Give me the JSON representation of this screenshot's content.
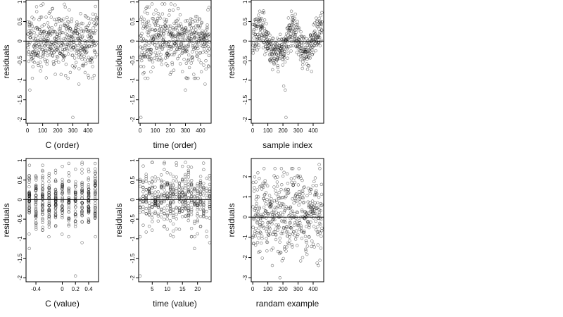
{
  "chart_data": [
    {
      "type": "scatter",
      "xlabel": "C (order)",
      "ylabel": "residuals",
      "xlim": [
        -10,
        470
      ],
      "ylim": [
        -2.1,
        1.05
      ],
      "xticks": [
        0,
        100,
        200,
        300,
        400
      ],
      "yticks": [
        -2.0,
        -1.5,
        -1.0,
        -0.5,
        0.0,
        0.5,
        1.0
      ],
      "reference_line": 0,
      "n_points": 460,
      "seed": 11,
      "x_mode": "index",
      "pattern": "random",
      "y_sd": 0.38,
      "outliers": [
        [
          15,
          -1.25
        ],
        [
          300,
          -1.95
        ],
        [
          340,
          -1.1
        ]
      ]
    },
    {
      "type": "scatter",
      "xlabel": "time (order)",
      "ylabel": "residuals",
      "xlim": [
        -10,
        470
      ],
      "ylim": [
        -2.1,
        1.05
      ],
      "xticks": [
        0,
        100,
        200,
        300,
        400
      ],
      "yticks": [
        -2.0,
        -1.5,
        -1.0,
        -0.5,
        0.0,
        0.5,
        1.0
      ],
      "reference_line": 0,
      "n_points": 460,
      "seed": 23,
      "x_mode": "index",
      "pattern": "random",
      "y_sd": 0.38,
      "outliers": [
        [
          5,
          -1.95
        ],
        [
          300,
          -1.25
        ],
        [
          430,
          -1.1
        ]
      ]
    },
    {
      "type": "scatter",
      "xlabel": "sample index",
      "ylabel": "residuals",
      "xlim": [
        -10,
        470
      ],
      "ylim": [
        -2.1,
        1.05
      ],
      "xticks": [
        0,
        100,
        200,
        300,
        400
      ],
      "yticks": [
        -2.0,
        -1.5,
        -1.0,
        -0.5,
        0.0,
        0.5,
        1.0
      ],
      "reference_line": 0,
      "n_points": 460,
      "seed": 37,
      "x_mode": "index",
      "pattern": "wave",
      "y_sd": 0.22,
      "outliers": [
        [
          220,
          -1.95
        ],
        [
          215,
          -1.25
        ],
        [
          205,
          -1.15
        ]
      ]
    },
    {
      "type": "scatter",
      "xlabel": "C (value)",
      "ylabel": "residuals",
      "xlim": [
        -0.55,
        0.55
      ],
      "ylim": [
        -2.1,
        1.05
      ],
      "xticks": [
        -0.4,
        0.0,
        0.2,
        0.4
      ],
      "yticks": [
        -2.0,
        -1.5,
        -1.0,
        -0.5,
        0.0,
        0.5,
        1.0
      ],
      "reference_line": 0,
      "n_points": 460,
      "seed": 41,
      "x_mode": "discrete",
      "x_values": [
        -0.5,
        -0.4,
        -0.3,
        -0.2,
        -0.1,
        0.0,
        0.1,
        0.2,
        0.3,
        0.4,
        0.5
      ],
      "pattern": "random",
      "y_sd": 0.38,
      "outliers": [
        [
          -0.5,
          -1.25
        ],
        [
          0.2,
          -1.95
        ],
        [
          0.3,
          -1.1
        ]
      ]
    },
    {
      "type": "scatter",
      "xlabel": "time (value)",
      "ylabel": "residuals",
      "xlim": [
        0.5,
        24.5
      ],
      "ylim": [
        -2.1,
        1.05
      ],
      "xticks": [
        5,
        10,
        15,
        20
      ],
      "yticks": [
        -2.0,
        -1.5,
        -1.0,
        -0.5,
        0.0,
        0.5,
        1.0
      ],
      "reference_line": 0,
      "n_points": 460,
      "seed": 53,
      "x_mode": "discrete",
      "x_values": [
        1,
        2,
        3,
        4,
        5,
        6,
        7,
        8,
        9,
        10,
        11,
        12,
        13,
        14,
        15,
        16,
        17,
        18,
        19,
        20,
        21,
        22,
        23,
        24
      ],
      "pattern": "random",
      "y_sd": 0.38,
      "outliers": [
        [
          1,
          -1.95
        ],
        [
          19,
          -1.25
        ],
        [
          24,
          -1.1
        ]
      ]
    },
    {
      "type": "scatter",
      "xlabel": "randam example",
      "ylabel": "residuals",
      "xlim": [
        -10,
        470
      ],
      "ylim": [
        -3.2,
        2.9
      ],
      "xticks": [
        0,
        100,
        200,
        300,
        400
      ],
      "yticks": [
        -3,
        -2,
        -1,
        0,
        1,
        2
      ],
      "reference_line": 0,
      "n_points": 460,
      "seed": 67,
      "x_mode": "index",
      "pattern": "random",
      "y_sd": 1.0,
      "outliers": [
        [
          180,
          -3.0
        ],
        [
          440,
          2.6
        ]
      ]
    }
  ]
}
